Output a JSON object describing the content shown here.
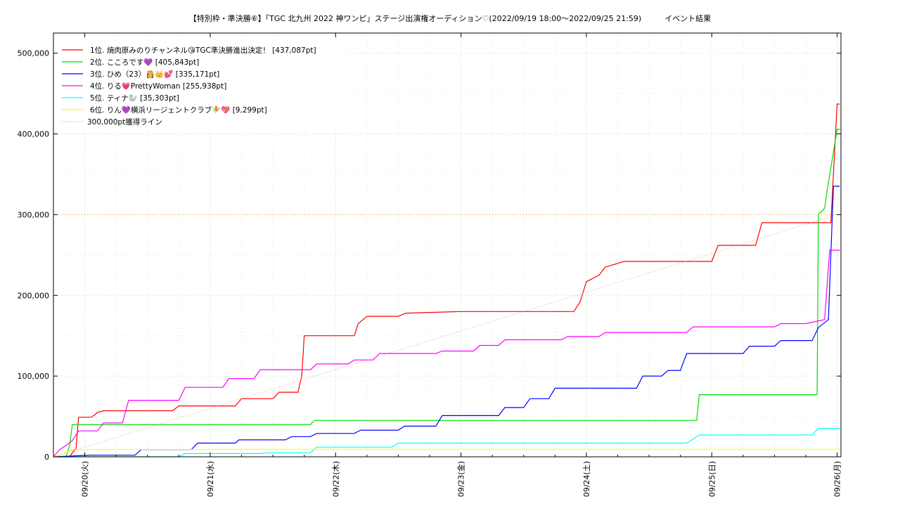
{
  "chart_data": {
    "type": "line",
    "title": "【特別枠・準決勝⑥】「TGC 北九州 2022 神ワンピ」ステージ出演権オーディション♡(2022/09/19 18:00〜2022/09/25 21:59)　　　イベント結果",
    "xlabel": "",
    "ylabel": "",
    "x_ticks": [
      "09/20(火)",
      "09/21(水)",
      "09/22(木)",
      "09/23(金)",
      "09/24(土)",
      "09/25(日)",
      "09/26(月)"
    ],
    "xlim": [
      -0.25,
      6.03
    ],
    "y_ticks": [
      "0",
      "100,000",
      "200,000",
      "300,000",
      "400,000",
      "500,000"
    ],
    "ylim": [
      0,
      525000
    ],
    "grid": true,
    "legend_position": "top-left",
    "series": [
      {
        "name": "1位. 焼肉原みのりチャンネル😘TGC準決勝進出決定！ [437,087pt]",
        "color": "#ff0000",
        "x": [
          -0.25,
          -0.12,
          -0.1,
          -0.07,
          -0.05,
          0.05,
          0.08,
          0.1,
          0.15,
          0.17,
          0.7,
          0.75,
          1.2,
          1.25,
          1.5,
          1.55,
          1.7,
          1.73,
          1.75,
          2.15,
          2.18,
          2.25,
          2.5,
          2.56,
          3.0,
          3.05,
          3.9,
          3.95,
          4.0,
          4.1,
          4.15,
          4.3,
          5.0,
          5.05,
          5.25,
          5.35,
          5.4,
          5.95,
          5.98,
          6.0,
          6.02
        ],
        "y": [
          0,
          0,
          5000,
          10000,
          49000,
          49000,
          52000,
          55000,
          57000,
          57000,
          57000,
          63000,
          63000,
          72000,
          72000,
          80000,
          80000,
          100000,
          150000,
          150000,
          165000,
          174000,
          174000,
          178000,
          180000,
          180000,
          180000,
          192000,
          217000,
          225000,
          235000,
          242000,
          242000,
          262000,
          262000,
          262000,
          290000,
          290000,
          380000,
          437087,
          437087
        ]
      },
      {
        "name": "2位. こころです💜 [405,843pt]",
        "color": "#00dd00",
        "x": [
          -0.25,
          -0.15,
          -0.12,
          -0.1,
          1.8,
          1.83,
          3.0,
          4.5,
          4.88,
          4.9,
          5.5,
          5.52,
          5.54,
          5.84,
          5.85,
          5.9,
          5.92,
          6.0,
          6.02
        ],
        "y": [
          0,
          0,
          15000,
          40000,
          40000,
          45000,
          45000,
          45000,
          45000,
          77000,
          77000,
          77000,
          77000,
          77000,
          300000,
          308000,
          330000,
          405843,
          405843
        ]
      },
      {
        "name": "3位. ひめ（23）👸👑💕 [335,171pt]",
        "color": "#0000ff",
        "x": [
          -0.25,
          0.05,
          0.4,
          0.45,
          0.85,
          0.9,
          1.2,
          1.23,
          1.6,
          1.65,
          1.8,
          1.85,
          2.15,
          2.2,
          2.5,
          2.55,
          2.8,
          2.85,
          3.3,
          3.35,
          3.5,
          3.55,
          3.7,
          3.75,
          4.4,
          4.45,
          4.6,
          4.65,
          4.75,
          4.8,
          5.25,
          5.3,
          5.5,
          5.55,
          5.8,
          5.85,
          5.93,
          5.97,
          6.0,
          6.02
        ],
        "y": [
          0,
          2000,
          2000,
          9000,
          9000,
          17000,
          17000,
          21000,
          21000,
          25000,
          25000,
          29000,
          29000,
          33000,
          33000,
          38000,
          38000,
          51000,
          51000,
          61000,
          61000,
          72000,
          72000,
          85000,
          85000,
          100000,
          100000,
          107000,
          107000,
          128000,
          128000,
          137000,
          137000,
          144000,
          144000,
          160000,
          170000,
          335171,
          335171,
          335171
        ]
      },
      {
        "name": "4位. りる💗PrettyWoman [255,938pt]",
        "color": "#ff00ff",
        "x": [
          -0.25,
          -0.2,
          -0.15,
          -0.1,
          -0.05,
          0.1,
          0.15,
          0.3,
          0.35,
          0.75,
          0.8,
          1.1,
          1.15,
          1.35,
          1.4,
          1.8,
          1.85,
          2.1,
          2.15,
          2.3,
          2.35,
          2.8,
          2.85,
          3.1,
          3.15,
          3.3,
          3.35,
          3.8,
          3.85,
          4.1,
          4.15,
          4.8,
          4.85,
          5.5,
          5.55,
          5.7,
          5.75,
          5.9,
          5.94,
          6.0,
          6.02
        ],
        "y": [
          0,
          9000,
          14000,
          20000,
          32000,
          32000,
          42000,
          42000,
          70000,
          70000,
          86000,
          86000,
          97000,
          97000,
          108000,
          108000,
          115000,
          115000,
          120000,
          120000,
          128000,
          128000,
          131000,
          131000,
          138000,
          138000,
          145000,
          145000,
          149000,
          149000,
          154000,
          154000,
          161000,
          161000,
          165000,
          165000,
          165000,
          170000,
          255938,
          255938,
          255938
        ]
      },
      {
        "name": "5位. ティナ🦭 [35,303pt]",
        "color": "#00ffff",
        "x": [
          -0.25,
          0.75,
          0.8,
          1.4,
          1.45,
          1.8,
          1.85,
          2.45,
          2.5,
          3.0,
          4.5,
          4.8,
          4.85,
          4.9,
          5.5,
          5.8,
          5.85,
          6.0,
          6.02
        ],
        "y": [
          0,
          0,
          4000,
          4000,
          5000,
          5000,
          12000,
          12000,
          17000,
          17000,
          17000,
          17000,
          22000,
          27000,
          27000,
          27000,
          35303,
          35303,
          35303
        ]
      },
      {
        "name": "6位. りん💜横浜リージェントクラブ🧚💖 [9,299pt]",
        "color": "#ffff00",
        "x": [
          -0.25,
          -0.2,
          -0.15,
          -0.1,
          0.0,
          2.0,
          4.0,
          6.0,
          6.02
        ],
        "y": [
          0,
          2000,
          6000,
          9000,
          9000,
          9299,
          9299,
          9299,
          9299
        ]
      },
      {
        "name": "300,000pt獲得ライン",
        "color": "#ff8888",
        "dashed": true,
        "x": [
          -0.25,
          6.0
        ],
        "y": [
          0,
          300000
        ]
      }
    ],
    "hline": {
      "y": 300000,
      "color": "#ff8800"
    }
  }
}
